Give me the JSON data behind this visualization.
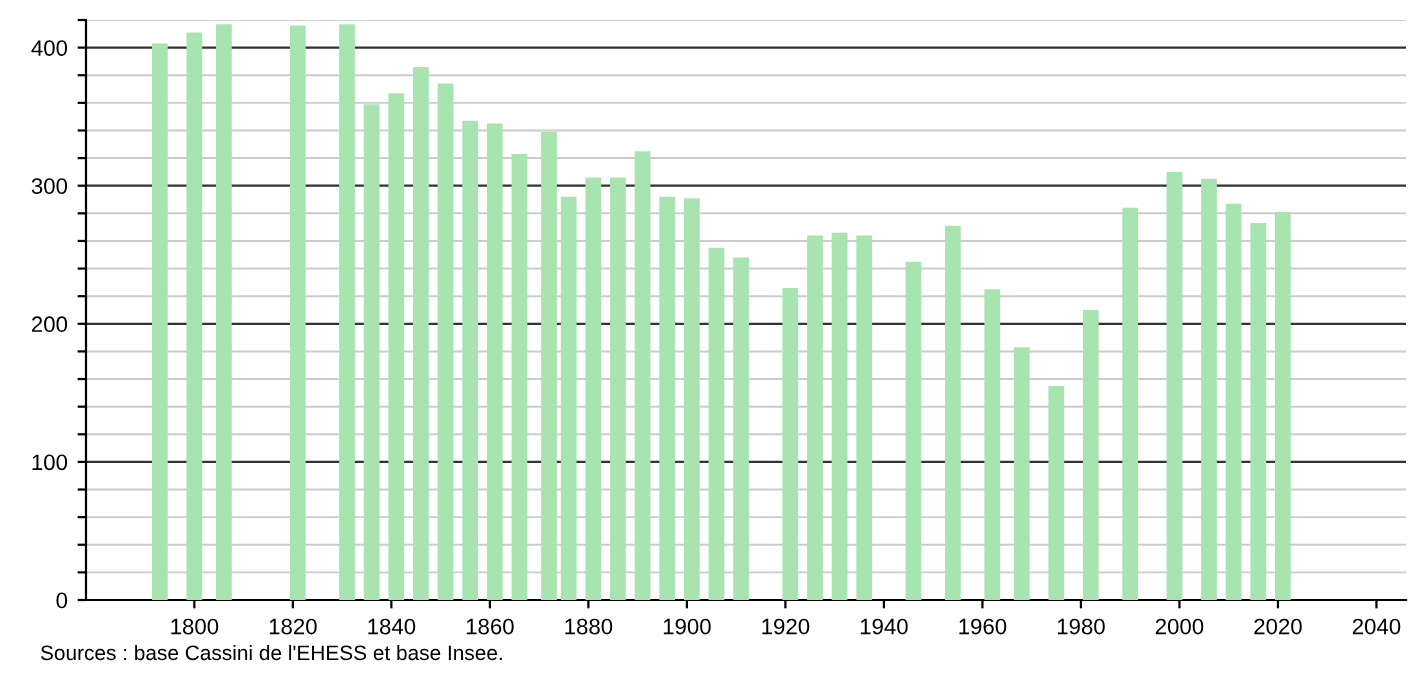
{
  "chart_data": {
    "type": "bar",
    "color": "#a8e4b0",
    "grid": "y",
    "x": [
      1793,
      1800,
      1806,
      1821,
      1831,
      1836,
      1841,
      1846,
      1851,
      1856,
      1861,
      1866,
      1872,
      1876,
      1881,
      1886,
      1891,
      1896,
      1901,
      1906,
      1911,
      1921,
      1926,
      1931,
      1936,
      1946,
      1954,
      1962,
      1968,
      1975,
      1982,
      1990,
      1999,
      2006,
      2011,
      2016,
      2021
    ],
    "values": [
      403,
      411,
      417,
      416,
      417,
      359,
      367,
      386,
      374,
      347,
      345,
      323,
      339,
      292,
      306,
      306,
      325,
      292,
      291,
      255,
      248,
      226,
      264,
      266,
      264,
      245,
      271,
      225,
      183,
      155,
      210,
      284,
      310,
      305,
      287,
      273,
      281
    ],
    "xlim": [
      1778,
      2046
    ],
    "xticks": [
      1800,
      1820,
      1840,
      1860,
      1880,
      1900,
      1920,
      1940,
      1960,
      1980,
      2000,
      2020,
      2040
    ],
    "ylim": [
      0,
      420
    ],
    "yticks": [
      0,
      {
        "value": 20,
        "label": null
      },
      {
        "value": 40,
        "label": null
      },
      {
        "value": 60,
        "label": null
      },
      {
        "value": 80,
        "label": null
      },
      100,
      {
        "value": 120,
        "label": null
      },
      {
        "value": 140,
        "label": null
      },
      {
        "value": 160,
        "label": null
      },
      {
        "value": 180,
        "label": null
      },
      200,
      {
        "value": 220,
        "label": null
      },
      {
        "value": 240,
        "label": null
      },
      {
        "value": 260,
        "label": null
      },
      {
        "value": 280,
        "label": null
      },
      300,
      {
        "value": 320,
        "label": null
      },
      {
        "value": 340,
        "label": null
      },
      {
        "value": 360,
        "label": null
      },
      {
        "value": 380,
        "label": null
      },
      400,
      {
        "value": 420,
        "label": null
      }
    ],
    "annotations": [
      "Sources : base Cassini de l'EHESS et base Insee."
    ]
  }
}
